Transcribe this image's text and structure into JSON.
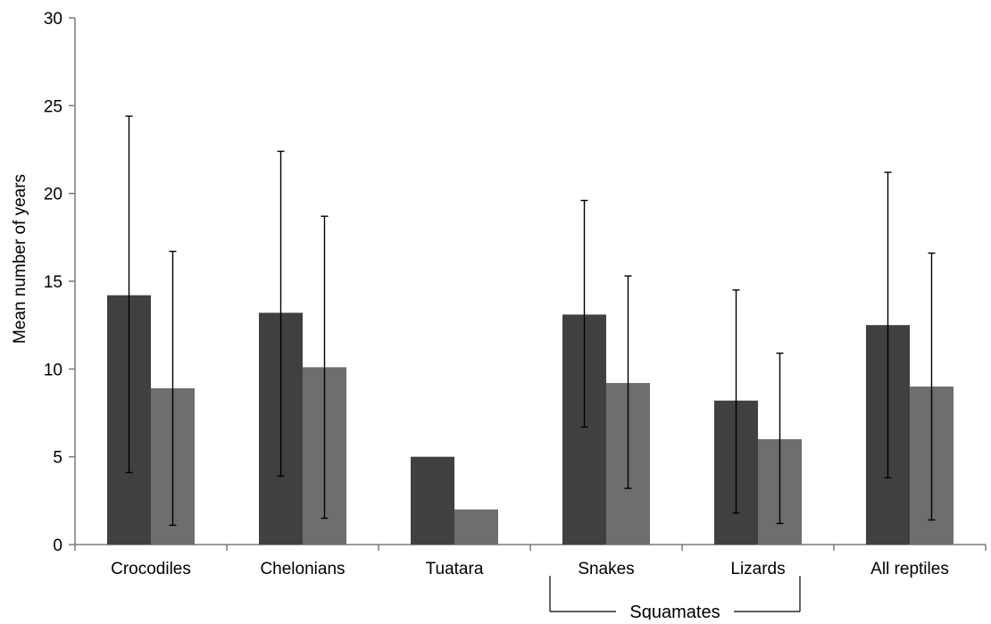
{
  "chart_data": {
    "type": "bar",
    "title": "",
    "xlabel": "",
    "ylabel": "Mean number of years",
    "ylim": [
      0,
      30
    ],
    "yticks": [
      0,
      5,
      10,
      15,
      20,
      25,
      30
    ],
    "grid": false,
    "legend": "none",
    "categories": [
      "Crocodiles",
      "Chelonians",
      "Tuatara",
      "Snakes",
      "Lizards",
      "All reptiles"
    ],
    "series": [
      {
        "color": "#404040",
        "values": [
          14.2,
          13.2,
          5.0,
          13.1,
          8.2,
          12.5
        ],
        "error_low": [
          4.1,
          3.9,
          null,
          6.7,
          1.8,
          3.8
        ],
        "error_high": [
          24.4,
          22.4,
          null,
          19.6,
          14.5,
          21.2
        ]
      },
      {
        "color": "#6e6e6e",
        "values": [
          8.9,
          10.1,
          2.0,
          9.2,
          6.0,
          9.0
        ],
        "error_low": [
          1.1,
          1.5,
          null,
          3.2,
          1.2,
          1.4
        ],
        "error_high": [
          16.7,
          18.7,
          null,
          15.3,
          10.9,
          16.6
        ]
      }
    ],
    "annotations": [
      {
        "label": "Squamates",
        "spans": [
          "Snakes",
          "Lizards"
        ]
      }
    ]
  }
}
